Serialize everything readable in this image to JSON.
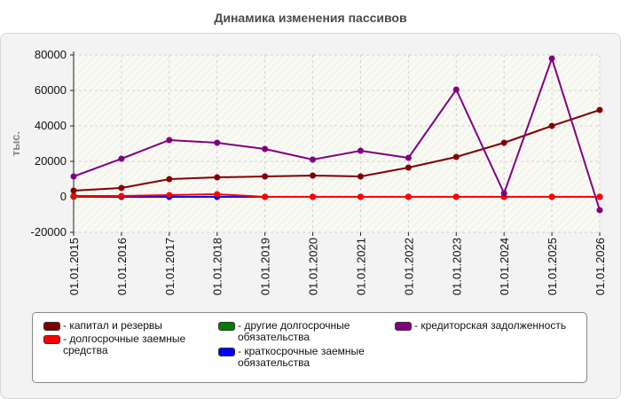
{
  "chart_data": {
    "type": "line",
    "title": "Динамика изменения пассивов",
    "xlabel": "",
    "ylabel": "тыс.",
    "ylim": [
      -20000,
      80000
    ],
    "yticks": [
      80000,
      60000,
      40000,
      20000,
      0,
      -20000
    ],
    "grid": true,
    "legend_position": "bottom",
    "categories": [
      "01.01.2015",
      "01.01.2016",
      "01.01.2017",
      "01.01.2018",
      "01.01.2019",
      "01.01.2020",
      "01.01.2021",
      "01.01.2022",
      "01.01.2023",
      "01.01.2024",
      "01.01.2025",
      "01.01.2026"
    ],
    "series": [
      {
        "name": "капитал и резервы",
        "color": "#800000",
        "values": [
          3500,
          5000,
          10000,
          11000,
          11500,
          12000,
          11500,
          16500,
          22500,
          30500,
          40000,
          49000
        ]
      },
      {
        "name": "долгосрочные заемные средства",
        "color": "#ff0000",
        "values": [
          500,
          500,
          1000,
          1500,
          0,
          0,
          0,
          0,
          0,
          0,
          0,
          0
        ]
      },
      {
        "name": "другие долгосрочные обязательства",
        "color": "#008000",
        "values": [
          0,
          0,
          0,
          0,
          0,
          0,
          0,
          0,
          0,
          0,
          0,
          0
        ]
      },
      {
        "name": "краткосрочные заемные обязательства",
        "color": "#0000ff",
        "values": [
          500,
          0,
          0,
          0,
          0,
          0,
          0,
          0,
          0,
          0,
          0,
          0
        ]
      },
      {
        "name": "кредиторская задолженность",
        "color": "#800080",
        "values": [
          11500,
          21500,
          32000,
          30500,
          27000,
          21000,
          26000,
          22000,
          60500,
          2000,
          78000,
          -7500
        ]
      }
    ],
    "legend_order": [
      0,
      1,
      2,
      3,
      4
    ],
    "legend_labels": [
      "- капитал и резервы",
      "- долгосрочные заемные средства",
      "- другие долгосрочные обязательства",
      "- краткосрочные заемные обязательства",
      "- кредиторская задолженность"
    ]
  }
}
